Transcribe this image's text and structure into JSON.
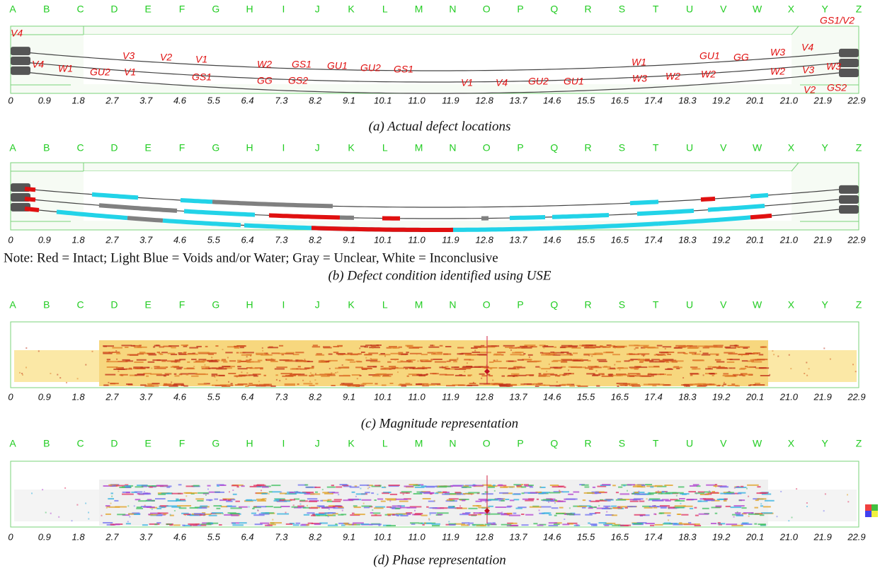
{
  "axis": {
    "letters": [
      "A",
      "B",
      "C",
      "D",
      "E",
      "F",
      "G",
      "H",
      "I",
      "J",
      "K",
      "L",
      "M",
      "N",
      "O",
      "P",
      "Q",
      "R",
      "S",
      "T",
      "U",
      "V",
      "W",
      "X",
      "Y",
      "Z"
    ],
    "distances": [
      "0",
      "0.9",
      "1.8",
      "2.7",
      "3.7",
      "4.6",
      "5.5",
      "6.4",
      "7.3",
      "8.2",
      "9.1",
      "10.1",
      "11.0",
      "11.9",
      "12.8",
      "13.7",
      "14.6",
      "15.5",
      "16.5",
      "17.4",
      "18.3",
      "19.2",
      "20.1",
      "21.0",
      "21.9",
      "22.9"
    ]
  },
  "panels": [
    {
      "caption": "(a) Actual defect locations",
      "labels": [
        "V4",
        "V4",
        "W1",
        "GU2",
        "V1",
        "V3",
        "V2",
        "V1",
        "GS1",
        "W2",
        "GG",
        "GS1",
        "GS2",
        "GU1",
        "GU2",
        "GS1",
        "V1",
        "V4",
        "GU2",
        "GU1",
        "W1",
        "W3",
        "W2",
        "W2",
        "GU1",
        "GG",
        "W3",
        "V4",
        "W2",
        "V3",
        "W3",
        "V2",
        "GS2",
        "GS1/V2"
      ]
    },
    {
      "caption": "(b) Defect condition identified using USE",
      "note": "Note: Red = Intact; Light Blue = Voids and/or Water; Gray = Unclear, White = Inconclusive"
    },
    {
      "caption": "(c) Magnitude representation"
    },
    {
      "caption": "(d) Phase representation"
    }
  ]
}
